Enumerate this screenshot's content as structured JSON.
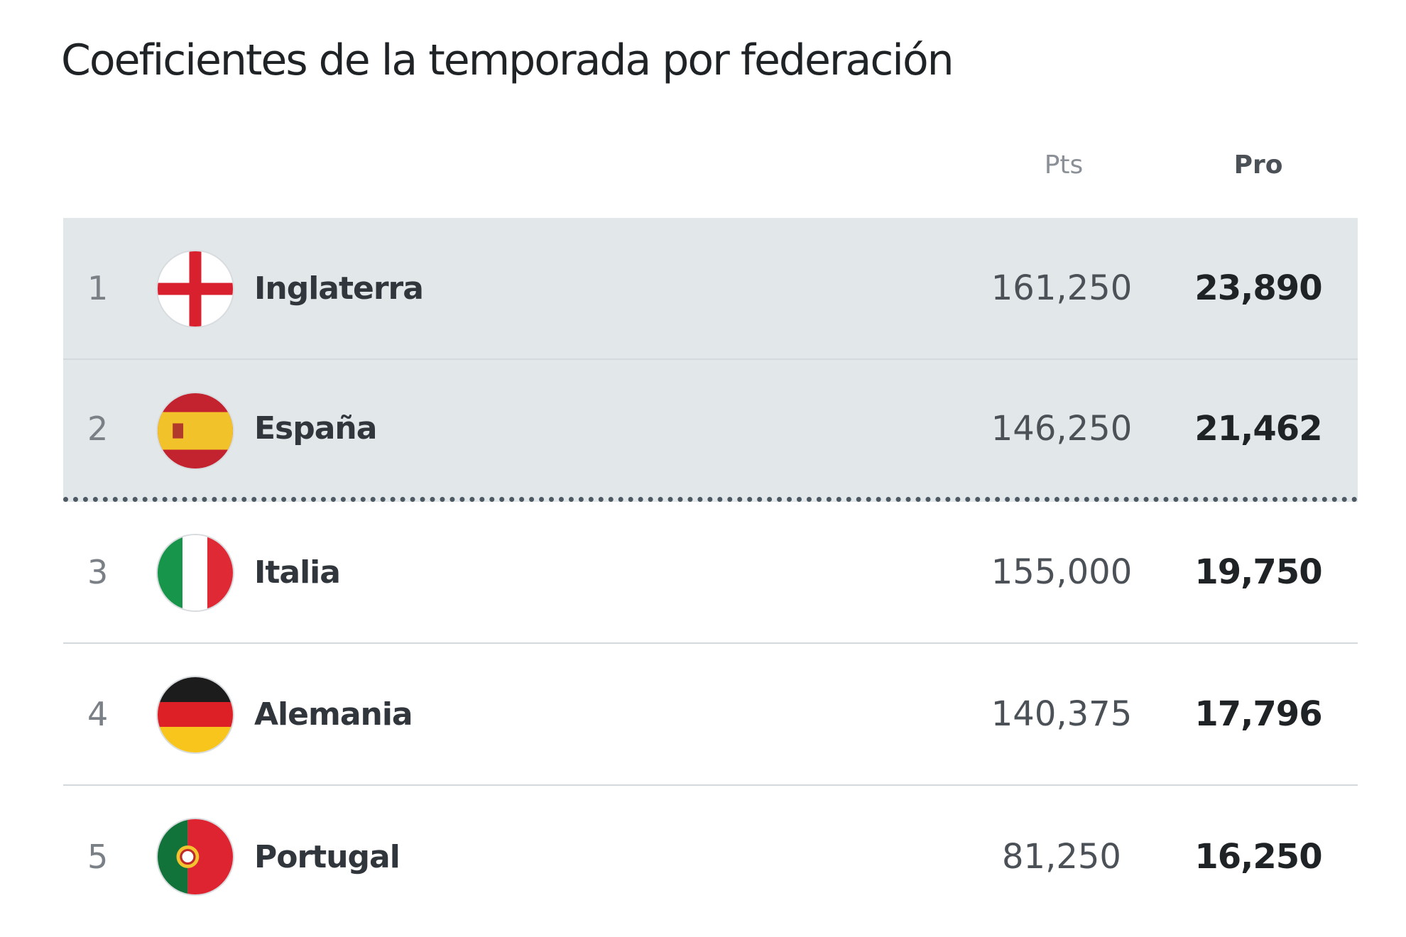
{
  "header": {
    "title": "Coeficientes de la temporada por federación",
    "col_pts": "Pts",
    "col_pro": "Pro"
  },
  "table": {
    "rows": [
      {
        "rank": "1",
        "name": "Inglaterra",
        "pts": "161,250",
        "pro": "23,890"
      },
      {
        "rank": "2",
        "name": "España",
        "pts": "146,250",
        "pro": "21,462"
      },
      {
        "rank": "3",
        "name": "Italia",
        "pts": "155,000",
        "pro": "19,750"
      },
      {
        "rank": "4",
        "name": "Alemania",
        "pts": "140,375",
        "pro": "17,796"
      },
      {
        "rank": "5",
        "name": "Portugal",
        "pts": "81,250",
        "pro": "16,250"
      }
    ]
  }
}
